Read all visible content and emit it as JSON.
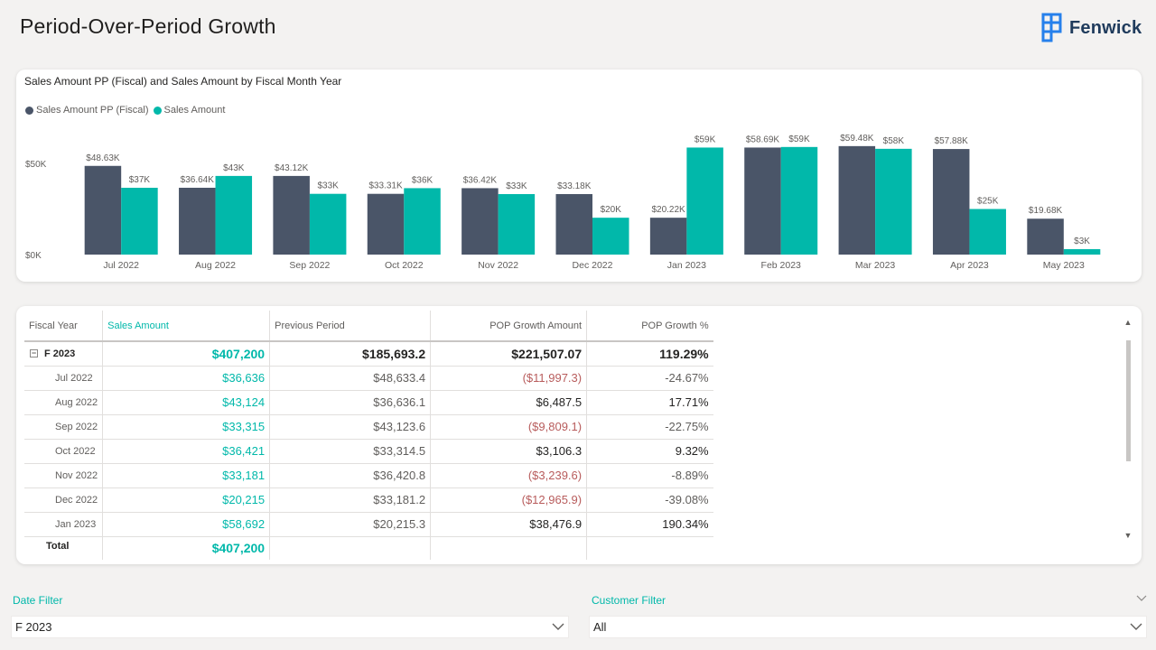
{
  "page": {
    "title": "Period-Over-Period Growth"
  },
  "brand": {
    "name": "Fenwick",
    "color": "#1f3b5c",
    "icon_color": "#2680eb",
    "icon": "fenwick-logo-icon"
  },
  "colors": {
    "series_pp": "#4a5568",
    "series_sales": "#01b8aa",
    "accent": "#01b8aa",
    "negative": "#b85c5c"
  },
  "chart": {
    "title": "Sales Amount PP (Fiscal) and Sales Amount by Fiscal Month Year"
  },
  "chart_data": {
    "type": "bar",
    "title": "Sales Amount PP (Fiscal) and Sales Amount by Fiscal Month Year",
    "categories": [
      "Jul 2022",
      "Aug 2022",
      "Sep 2022",
      "Oct 2022",
      "Nov 2022",
      "Dec 2022",
      "Jan 2023",
      "Feb 2023",
      "Mar 2023",
      "Apr 2023",
      "May 2023"
    ],
    "series": [
      {
        "name": "Sales Amount PP (Fiscal)",
        "color": "#4a5568",
        "values": [
          48630,
          36640,
          43120,
          33310,
          36420,
          33180,
          20220,
          58690,
          59480,
          57880,
          19680
        ],
        "labels": [
          "$48.63K",
          "$36.64K",
          "$43.12K",
          "$33.31K",
          "$36.42K",
          "$33.18K",
          "$20.22K",
          "$58.69K",
          "$59.48K",
          "$57.88K",
          "$19.68K"
        ]
      },
      {
        "name": "Sales Amount",
        "color": "#01b8aa",
        "values": [
          36636,
          43124,
          33315,
          36421,
          33181,
          20215,
          58692,
          59000,
          58000,
          25000,
          3000
        ],
        "labels": [
          "$37K",
          "$43K",
          "$33K",
          "$36K",
          "$33K",
          "$20K",
          "$59K",
          "$59K",
          "$58K",
          "$25K",
          "$3K"
        ]
      }
    ],
    "yticks": [
      {
        "value": 0,
        "label": "$0K"
      },
      {
        "value": 50000,
        "label": "$50K"
      }
    ],
    "ylim": [
      0,
      60000
    ],
    "grid": false,
    "legend": "top-left"
  },
  "table": {
    "columns": [
      "Fiscal Year",
      "Sales Amount",
      "Previous Period",
      "POP Growth Amount",
      "POP Growth %"
    ],
    "group": {
      "label": "F 2023",
      "sales": "$407,200",
      "previous": "$185,693.2",
      "growth_amount": "$221,507.07",
      "growth_pct": "119.29%"
    },
    "rows": [
      {
        "label": "Jul 2022",
        "sales": "$36,636",
        "previous": "$48,633.4",
        "growth_amount": "($11,997.3)",
        "growth_pct": "-24.67%"
      },
      {
        "label": "Aug 2022",
        "sales": "$43,124",
        "previous": "$36,636.1",
        "growth_amount": "$6,487.5",
        "growth_pct": "17.71%"
      },
      {
        "label": "Sep 2022",
        "sales": "$33,315",
        "previous": "$43,123.6",
        "growth_amount": "($9,809.1)",
        "growth_pct": "-22.75%"
      },
      {
        "label": "Oct 2022",
        "sales": "$36,421",
        "previous": "$33,314.5",
        "growth_amount": "$3,106.3",
        "growth_pct": "9.32%"
      },
      {
        "label": "Nov 2022",
        "sales": "$33,181",
        "previous": "$36,420.8",
        "growth_amount": "($3,239.6)",
        "growth_pct": "-8.89%"
      },
      {
        "label": "Dec 2022",
        "sales": "$20,215",
        "previous": "$33,181.2",
        "growth_amount": "($12,965.9)",
        "growth_pct": "-39.08%"
      },
      {
        "label": "Jan 2023",
        "sales": "$58,692",
        "previous": "$20,215.3",
        "growth_amount": "$38,476.9",
        "growth_pct": "190.34%"
      }
    ],
    "total": {
      "label": "Total",
      "sales": "$407,200"
    }
  },
  "filters": {
    "date": {
      "label": "Date Filter",
      "value": "F 2023"
    },
    "customer": {
      "label": "Customer Filter",
      "value": "All"
    }
  }
}
